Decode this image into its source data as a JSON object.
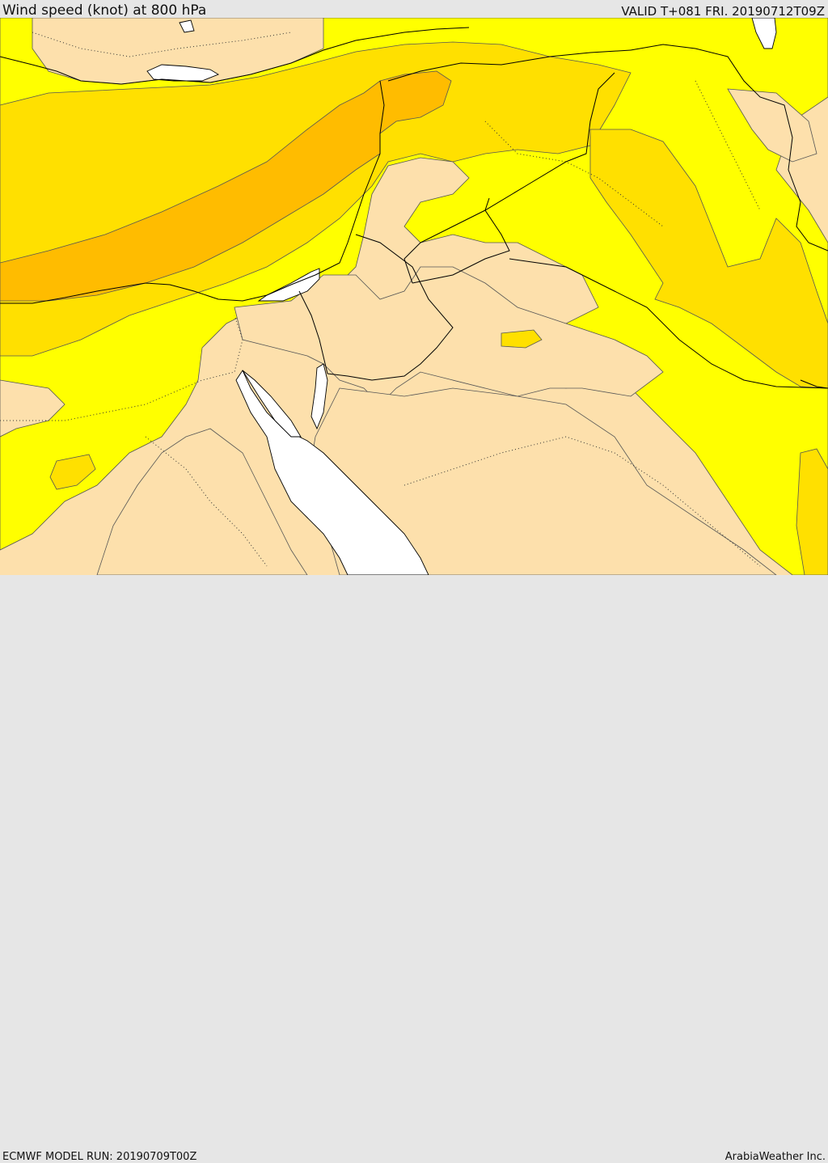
{
  "header": {
    "title": "Wind speed (knot) at 800 hPa",
    "valid": "VALID T+081 FRI. 20190712T09Z"
  },
  "footer": {
    "model_run": "ECMWF MODEL RUN: 20190709T00Z",
    "credit": "ArabiaWeather Inc."
  },
  "map": {
    "field": "wind speed",
    "units": "knot",
    "level": "800 hPa",
    "palette": {
      "background": "#ffffff",
      "lowest_speed_band": "#fde0ac",
      "low_band": "#ffff00",
      "moderate_band": "#ffe000",
      "high_band": "#ffbc00",
      "contour_line": "#555555",
      "coastline": "#000000",
      "border_dotted": "#333333"
    }
  }
}
